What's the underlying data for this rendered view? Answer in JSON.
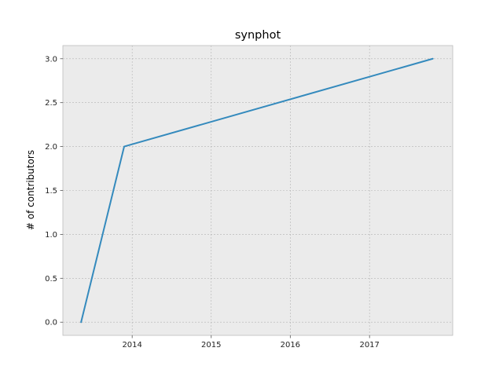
{
  "chart_data": {
    "type": "line",
    "title": "synphot",
    "xlabel": "",
    "ylabel": "# of contributors",
    "x_tick_labels": [
      "2014",
      "2015",
      "2016",
      "2017"
    ],
    "y_tick_labels": [
      "0.0",
      "0.5",
      "1.0",
      "1.5",
      "2.0",
      "2.5",
      "3.0"
    ],
    "xlim": [
      "2013-02-15",
      "2018-01-20"
    ],
    "ylim": [
      -0.15,
      3.15
    ],
    "grid": true,
    "series": [
      {
        "x": [
          "2013-05-10",
          "2013-11-25",
          "2017-10-20"
        ],
        "y": [
          0,
          2,
          3
        ]
      }
    ],
    "colors": {
      "line": "#348ABD",
      "background": "#EBEBEB",
      "grid": "#B3B3B3",
      "frame": "#BCBCBC"
    }
  }
}
